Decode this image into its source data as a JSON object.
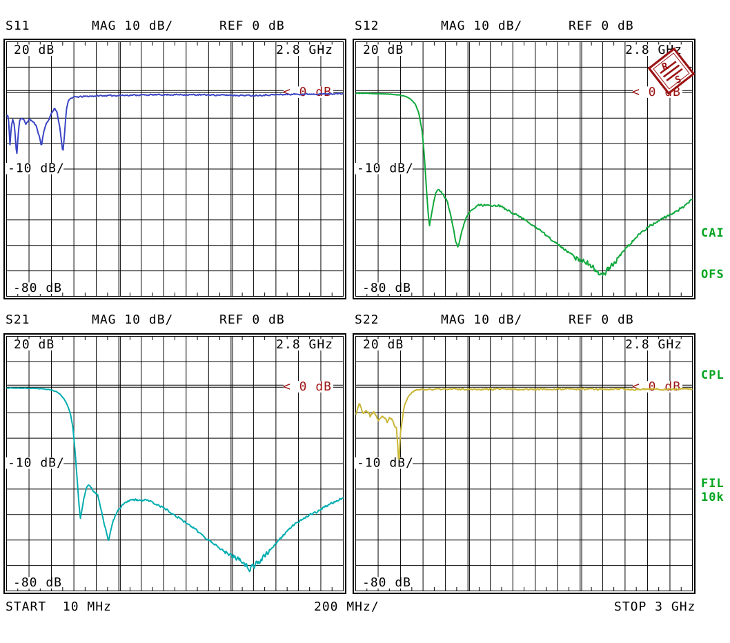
{
  "display": {
    "headers": [
      {
        "channel": "S11",
        "format": "MAG 10 dB/",
        "ref": "REF 0 dB"
      },
      {
        "channel": "S12",
        "format": "MAG 10 dB/",
        "ref": "REF 0 dB"
      },
      {
        "channel": "S21",
        "format": "MAG 10 dB/",
        "ref": "REF 0 dB"
      },
      {
        "channel": "S22",
        "format": "MAG 10 dB/",
        "ref": "REF 0 dB"
      }
    ],
    "panel_labels": {
      "top_left": "20 dB",
      "top_right": "2.8 GHz",
      "mid_left": "-10 dB/",
      "bottom_left": "-80 dB",
      "ref_marker": "< 0 dB"
    },
    "footer": {
      "start": "START  10 MHz",
      "per_div": "200 MHz/",
      "stop": "STOP 3 GHz"
    },
    "side_labels": [
      {
        "text": "CAI"
      },
      {
        "text": "OFS"
      },
      {
        "text": "CPL"
      },
      {
        "text": "FIL"
      },
      {
        "text": "10k"
      }
    ]
  },
  "colors": {
    "background": "#FFFFFF",
    "grid": "#000000",
    "text": "#000000",
    "marker_red": "#9B1414",
    "logo_red": "#9B1414",
    "status_green": "#00A41E",
    "trace_s11": "#3A45C4",
    "trace_s12": "#0FA83C",
    "trace_s21": "#00ADB0",
    "trace_s22": "#C9B636"
  },
  "chart_data": [
    {
      "type": "line",
      "name": "S11",
      "title": "S11 MAG 10 dB/ REF 0 dB",
      "xlabel": "frequency (GHz), START 10 MHz, STOP 3 GHz, 200 MHz/div",
      "ylabel": "magnitude (dB), 10 dB/div, REF 0 dB",
      "x_start_GHz": 0.01,
      "x_stop_GHz": 3.0,
      "x_per_div_MHz": 200,
      "y_top_dB": 20,
      "y_bottom_dB": -80,
      "y_per_div_dB": 10,
      "ref_dB": 0,
      "grid": {
        "x_divisions": 15,
        "y_divisions": 10,
        "major_x_every": 5
      },
      "logo": false,
      "series": [
        {
          "name": "S11",
          "color": "#3A45C4",
          "seed": 11,
          "noise_segments_GHz_dB": [
            [
              0.01,
              0.55,
              0.5
            ],
            [
              0.55,
              3.0,
              0.3
            ]
          ],
          "points_GHz_dB": [
            [
              0.01,
              -9.5
            ],
            [
              0.02,
              -8.5
            ],
            [
              0.03,
              -12
            ],
            [
              0.04,
              -21
            ],
            [
              0.05,
              -14
            ],
            [
              0.065,
              -10.5
            ],
            [
              0.08,
              -13
            ],
            [
              0.09,
              -19
            ],
            [
              0.1,
              -25
            ],
            [
              0.11,
              -18
            ],
            [
              0.125,
              -11
            ],
            [
              0.14,
              -10
            ],
            [
              0.16,
              -10.5
            ],
            [
              0.18,
              -12.5
            ],
            [
              0.2,
              -11
            ],
            [
              0.22,
              -10.5
            ],
            [
              0.245,
              -11.5
            ],
            [
              0.265,
              -12.5
            ],
            [
              0.285,
              -14.5
            ],
            [
              0.305,
              -18
            ],
            [
              0.32,
              -21
            ],
            [
              0.335,
              -16.5
            ],
            [
              0.35,
              -13.5
            ],
            [
              0.38,
              -11
            ],
            [
              0.41,
              -8
            ],
            [
              0.44,
              -6
            ],
            [
              0.46,
              -8
            ],
            [
              0.48,
              -13
            ],
            [
              0.5,
              -20
            ],
            [
              0.51,
              -24
            ],
            [
              0.525,
              -16
            ],
            [
              0.54,
              -7
            ],
            [
              0.56,
              -2.8
            ],
            [
              0.6,
              -1.8
            ],
            [
              0.7,
              -1.5
            ],
            [
              0.85,
              -1.2
            ],
            [
              1.0,
              -1.1
            ],
            [
              1.2,
              -0.9
            ],
            [
              1.5,
              -0.8
            ],
            [
              1.8,
              -0.9
            ],
            [
              2.0,
              -1.0
            ],
            [
              2.2,
              -1.1
            ],
            [
              2.4,
              -0.8
            ],
            [
              2.6,
              -0.6
            ],
            [
              2.8,
              -0.5
            ],
            [
              2.99,
              -0.4
            ]
          ]
        }
      ]
    },
    {
      "type": "line",
      "name": "S12",
      "title": "S12 MAG 10 dB/ REF 0 dB",
      "xlabel": "frequency (GHz), START 10 MHz, STOP 3 GHz, 200 MHz/div",
      "ylabel": "magnitude (dB), 10 dB/div, REF 0 dB",
      "x_start_GHz": 0.01,
      "x_stop_GHz": 3.0,
      "x_per_div_MHz": 200,
      "y_top_dB": 20,
      "y_bottom_dB": -80,
      "y_per_div_dB": 10,
      "ref_dB": 0,
      "grid": {
        "x_divisions": 15,
        "y_divisions": 10,
        "major_x_every": 5
      },
      "logo": true,
      "series": [
        {
          "name": "S12",
          "color": "#0FA83C",
          "seed": 12,
          "noise_segments_GHz_dB": [
            [
              0.66,
              0.95,
              0.5
            ],
            [
              0.95,
              1.95,
              0.55
            ],
            [
              1.95,
              2.35,
              1.3
            ],
            [
              2.35,
              2.99,
              0.6
            ]
          ],
          "points_GHz_dB": [
            [
              0.01,
              -0.2
            ],
            [
              0.15,
              -0.3
            ],
            [
              0.3,
              -0.5
            ],
            [
              0.4,
              -0.9
            ],
            [
              0.46,
              -1.6
            ],
            [
              0.5,
              -2.6
            ],
            [
              0.54,
              -4.5
            ],
            [
              0.57,
              -8
            ],
            [
              0.6,
              -15
            ],
            [
              0.62,
              -25
            ],
            [
              0.64,
              -39
            ],
            [
              0.655,
              -48
            ],
            [
              0.665,
              -52
            ],
            [
              0.68,
              -48.5
            ],
            [
              0.7,
              -43.5
            ],
            [
              0.72,
              -39.5
            ],
            [
              0.745,
              -37.8
            ],
            [
              0.77,
              -39
            ],
            [
              0.8,
              -41
            ],
            [
              0.825,
              -43
            ],
            [
              0.85,
              -47
            ],
            [
              0.875,
              -53
            ],
            [
              0.9,
              -58.5
            ],
            [
              0.92,
              -60.8
            ],
            [
              0.94,
              -56.5
            ],
            [
              0.97,
              -51.5
            ],
            [
              1.0,
              -48.5
            ],
            [
              1.05,
              -45.5
            ],
            [
              1.1,
              -44.3
            ],
            [
              1.16,
              -44
            ],
            [
              1.22,
              -44.6
            ],
            [
              1.28,
              -44.2
            ],
            [
              1.34,
              -45.8
            ],
            [
              1.4,
              -47
            ],
            [
              1.46,
              -48.5
            ],
            [
              1.52,
              -50.2
            ],
            [
              1.6,
              -52.8
            ],
            [
              1.68,
              -55.2
            ],
            [
              1.76,
              -58
            ],
            [
              1.84,
              -60.8
            ],
            [
              1.92,
              -63.2
            ],
            [
              2.0,
              -65.8
            ],
            [
              2.08,
              -67.4
            ],
            [
              2.14,
              -69.5
            ],
            [
              2.19,
              -72
            ],
            [
              2.24,
              -70
            ],
            [
              2.3,
              -67
            ],
            [
              2.36,
              -63.8
            ],
            [
              2.44,
              -59.8
            ],
            [
              2.52,
              -56
            ],
            [
              2.6,
              -53
            ],
            [
              2.68,
              -50.8
            ],
            [
              2.76,
              -49
            ],
            [
              2.84,
              -47
            ],
            [
              2.92,
              -45
            ],
            [
              2.99,
              -42
            ]
          ]
        }
      ]
    },
    {
      "type": "line",
      "name": "S21",
      "title": "S21 MAG 10 dB/ REF 0 dB",
      "xlabel": "frequency (GHz), START 10 MHz, STOP 3 GHz, 200 MHz/div",
      "ylabel": "magnitude (dB), 10 dB/div, REF 0 dB",
      "x_start_GHz": 0.01,
      "x_stop_GHz": 3.0,
      "x_per_div_MHz": 200,
      "y_top_dB": 20,
      "y_bottom_dB": -80,
      "y_per_div_dB": 10,
      "ref_dB": 0,
      "grid": {
        "x_divisions": 15,
        "y_divisions": 10,
        "major_x_every": 5
      },
      "logo": false,
      "series": [
        {
          "name": "S21",
          "color": "#00ADB0",
          "seed": 21,
          "noise_segments_GHz_dB": [
            [
              0.66,
              0.95,
              0.5
            ],
            [
              0.95,
              1.95,
              0.55
            ],
            [
              1.95,
              2.35,
              1.3
            ],
            [
              2.35,
              2.99,
              0.6
            ]
          ],
          "points_GHz_dB": [
            [
              0.01,
              -0.3
            ],
            [
              0.1,
              -0.3
            ],
            [
              0.2,
              -0.4
            ],
            [
              0.3,
              -0.5
            ],
            [
              0.38,
              -0.8
            ],
            [
              0.44,
              -1.5
            ],
            [
              0.48,
              -2.5
            ],
            [
              0.52,
              -4.5
            ],
            [
              0.55,
              -7
            ],
            [
              0.575,
              -10
            ],
            [
              0.6,
              -16
            ],
            [
              0.62,
              -26
            ],
            [
              0.64,
              -38
            ],
            [
              0.655,
              -47
            ],
            [
              0.665,
              -51.5
            ],
            [
              0.68,
              -48
            ],
            [
              0.7,
              -43
            ],
            [
              0.72,
              -39.5
            ],
            [
              0.74,
              -38.5
            ],
            [
              0.76,
              -39.5
            ],
            [
              0.79,
              -41
            ],
            [
              0.82,
              -42.5
            ],
            [
              0.845,
              -47
            ],
            [
              0.87,
              -52
            ],
            [
              0.895,
              -57
            ],
            [
              0.915,
              -60.5
            ],
            [
              0.935,
              -56
            ],
            [
              0.96,
              -52
            ],
            [
              1.0,
              -48.5
            ],
            [
              1.05,
              -45.8
            ],
            [
              1.1,
              -44.6
            ],
            [
              1.15,
              -44.2
            ],
            [
              1.2,
              -44.6
            ],
            [
              1.26,
              -44.3
            ],
            [
              1.32,
              -45.6
            ],
            [
              1.38,
              -46.8
            ],
            [
              1.44,
              -48.2
            ],
            [
              1.5,
              -50
            ],
            [
              1.58,
              -52.5
            ],
            [
              1.66,
              -55
            ],
            [
              1.74,
              -57.8
            ],
            [
              1.82,
              -60.5
            ],
            [
              1.9,
              -63
            ],
            [
              1.98,
              -65.5
            ],
            [
              2.06,
              -67
            ],
            [
              2.12,
              -69
            ],
            [
              2.17,
              -71.5
            ],
            [
              2.22,
              -69.5
            ],
            [
              2.28,
              -67.5
            ],
            [
              2.34,
              -64.5
            ],
            [
              2.42,
              -60.5
            ],
            [
              2.5,
              -56.5
            ],
            [
              2.58,
              -53.5
            ],
            [
              2.66,
              -51
            ],
            [
              2.74,
              -49.5
            ],
            [
              2.82,
              -47.5
            ],
            [
              2.9,
              -45.5
            ],
            [
              2.99,
              -43.5
            ]
          ]
        }
      ]
    },
    {
      "type": "line",
      "name": "S22",
      "title": "S22 MAG 10 dB/ REF 0 dB",
      "xlabel": "frequency (GHz), START 10 MHz, STOP 3 GHz, 200 MHz/div",
      "ylabel": "magnitude (dB), 10 dB/div, REF 0 dB",
      "x_start_GHz": 0.01,
      "x_stop_GHz": 3.0,
      "x_per_div_MHz": 200,
      "y_top_dB": 20,
      "y_bottom_dB": -80,
      "y_per_div_dB": 10,
      "ref_dB": 0,
      "grid": {
        "x_divisions": 15,
        "y_divisions": 10,
        "major_x_every": 5
      },
      "logo": false,
      "series": [
        {
          "name": "S22",
          "color": "#C9B636",
          "seed": 22,
          "noise_segments_GHz_dB": [
            [
              0.01,
              0.45,
              0.6
            ],
            [
              0.45,
              3.0,
              0.45
            ]
          ],
          "points_GHz_dB": [
            [
              0.01,
              -11
            ],
            [
              0.03,
              -7.5
            ],
            [
              0.045,
              -6.5
            ],
            [
              0.06,
              -8.5
            ],
            [
              0.08,
              -10
            ],
            [
              0.1,
              -9
            ],
            [
              0.12,
              -10
            ],
            [
              0.14,
              -11.5
            ],
            [
              0.155,
              -10
            ],
            [
              0.17,
              -9.5
            ],
            [
              0.19,
              -11
            ],
            [
              0.21,
              -12.8
            ],
            [
              0.23,
              -11.8
            ],
            [
              0.25,
              -11
            ],
            [
              0.27,
              -12
            ],
            [
              0.29,
              -13.5
            ],
            [
              0.31,
              -12
            ],
            [
              0.33,
              -12.5
            ],
            [
              0.355,
              -15
            ],
            [
              0.372,
              -16
            ],
            [
              0.385,
              -24
            ],
            [
              0.393,
              -31
            ],
            [
              0.405,
              -19
            ],
            [
              0.42,
              -13.5
            ],
            [
              0.44,
              -8
            ],
            [
              0.46,
              -5
            ],
            [
              0.49,
              -2.8
            ],
            [
              0.52,
              -1.6
            ],
            [
              0.56,
              -1.0
            ],
            [
              0.65,
              -0.8
            ],
            [
              1.0,
              -0.7
            ],
            [
              1.5,
              -0.8
            ],
            [
              2.0,
              -0.7
            ],
            [
              2.5,
              -0.8
            ],
            [
              2.99,
              -0.7
            ]
          ]
        }
      ]
    }
  ]
}
